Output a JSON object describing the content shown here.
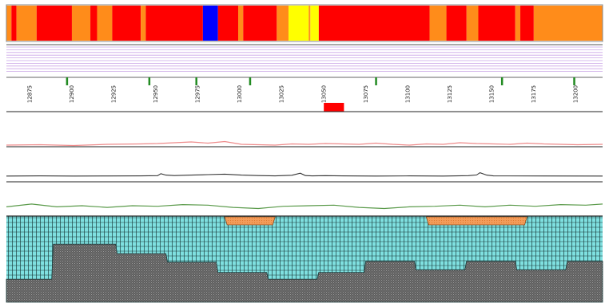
{
  "colors": {
    "red": "#ff0000",
    "orange": "#ff8c1a",
    "blue": "#0000ff",
    "yellow": "#ffff00",
    "marker_green": "#228b22",
    "highlight_red": "#ff0000",
    "track_pink": "#ee8a8a",
    "track_dark": "#333333",
    "track_green": "#5a9a4a",
    "region_orange": "#f39c5a",
    "cyan": "#7fe0e0",
    "grey_pattern": "#6b6b6b"
  },
  "ruler": {
    "domain": [
      12860,
      13215
    ],
    "labels": [
      "12875",
      "12900",
      "12925",
      "12950",
      "12975",
      "13000",
      "13025",
      "13050",
      "13075",
      "13100",
      "13125",
      "13150",
      "13175",
      "13200"
    ],
    "marker_positions": [
      12896,
      12945,
      12973,
      13005,
      13080,
      13155,
      13198
    ],
    "highlight": [
      13049,
      13061
    ]
  },
  "color_bar": [
    {
      "from": 12860,
      "to": 12863,
      "color": "orange"
    },
    {
      "from": 12863,
      "to": 12866,
      "color": "red"
    },
    {
      "from": 12866,
      "to": 12878,
      "color": "orange"
    },
    {
      "from": 12878,
      "to": 12899,
      "color": "red"
    },
    {
      "from": 12899,
      "to": 12910,
      "color": "orange"
    },
    {
      "from": 12910,
      "to": 12914,
      "color": "red"
    },
    {
      "from": 12914,
      "to": 12923,
      "color": "orange"
    },
    {
      "from": 12923,
      "to": 12940,
      "color": "red"
    },
    {
      "from": 12940,
      "to": 12943,
      "color": "orange"
    },
    {
      "from": 12943,
      "to": 12977,
      "color": "red"
    },
    {
      "from": 12977,
      "to": 12986,
      "color": "blue"
    },
    {
      "from": 12986,
      "to": 12998,
      "color": "red"
    },
    {
      "from": 12998,
      "to": 13001,
      "color": "orange"
    },
    {
      "from": 13001,
      "to": 13021,
      "color": "red"
    },
    {
      "from": 13021,
      "to": 13028,
      "color": "orange"
    },
    {
      "from": 13028,
      "to": 13040,
      "color": "yellow"
    },
    {
      "from": 13040,
      "to": 13041,
      "color": "orange"
    },
    {
      "from": 13041,
      "to": 13046,
      "color": "yellow"
    },
    {
      "from": 13046,
      "to": 13112,
      "color": "red"
    },
    {
      "from": 13112,
      "to": 13122,
      "color": "orange"
    },
    {
      "from": 13122,
      "to": 13134,
      "color": "red"
    },
    {
      "from": 13134,
      "to": 13141,
      "color": "orange"
    },
    {
      "from": 13141,
      "to": 13163,
      "color": "red"
    },
    {
      "from": 13163,
      "to": 13166,
      "color": "orange"
    },
    {
      "from": 13166,
      "to": 13174,
      "color": "red"
    },
    {
      "from": 13174,
      "to": 13215,
      "color": "orange"
    }
  ],
  "tracks": {
    "pink": {
      "x": [
        12860,
        12880,
        12900,
        12920,
        12940,
        12950,
        12960,
        12970,
        12980,
        12990,
        13000,
        13010,
        13020,
        13030,
        13040,
        13050,
        13060,
        13070,
        13080,
        13090,
        13100,
        13110,
        13120,
        13130,
        13140,
        13150,
        13160,
        13170,
        13180,
        13190,
        13200,
        13215
      ],
      "y": [
        0.2,
        0.25,
        0.15,
        0.3,
        0.35,
        0.4,
        0.5,
        0.6,
        0.45,
        0.65,
        0.3,
        0.25,
        0.2,
        0.35,
        0.3,
        0.4,
        0.35,
        0.3,
        0.45,
        0.3,
        0.2,
        0.35,
        0.3,
        0.5,
        0.4,
        0.35,
        0.3,
        0.45,
        0.35,
        0.3,
        0.25,
        0.3
      ]
    },
    "dark": {
      "x": [
        12860,
        12880,
        12900,
        12920,
        12940,
        12950,
        12952,
        12955,
        12960,
        12970,
        12980,
        12990,
        13000,
        13010,
        13020,
        13030,
        13035,
        13038,
        13042,
        13050,
        13060,
        13080,
        13100,
        13120,
        13135,
        13140,
        13142,
        13146,
        13150,
        13180,
        13215
      ],
      "y": [
        0.1,
        0.12,
        0.1,
        0.11,
        0.12,
        0.14,
        0.35,
        0.2,
        0.15,
        0.2,
        0.25,
        0.3,
        0.2,
        0.15,
        0.12,
        0.18,
        0.4,
        0.15,
        0.12,
        0.14,
        0.12,
        0.1,
        0.12,
        0.1,
        0.14,
        0.22,
        0.45,
        0.2,
        0.12,
        0.11,
        0.1
      ]
    },
    "green": {
      "x": [
        12860,
        12875,
        12890,
        12905,
        12920,
        12935,
        12950,
        12965,
        12980,
        12995,
        13010,
        13025,
        13040,
        13055,
        13070,
        13085,
        13100,
        13115,
        13130,
        13145,
        13160,
        13175,
        13190,
        13205,
        13215
      ],
      "y": [
        0.4,
        0.65,
        0.4,
        0.5,
        0.35,
        0.5,
        0.45,
        0.6,
        0.55,
        0.35,
        0.25,
        0.45,
        0.5,
        0.55,
        0.35,
        0.25,
        0.4,
        0.45,
        0.55,
        0.4,
        0.55,
        0.45,
        0.6,
        0.55,
        0.65
      ]
    }
  },
  "regions": [
    {
      "from": 12990,
      "to": 13020
    },
    {
      "from": 13110,
      "to": 13170
    }
  ],
  "depth_profile": [
    {
      "from": 12860,
      "to": 12887,
      "level": 0.27
    },
    {
      "from": 12887,
      "to": 12925,
      "level": 0.68
    },
    {
      "from": 12925,
      "to": 12955,
      "level": 0.57
    },
    {
      "from": 12955,
      "to": 12985,
      "level": 0.47
    },
    {
      "from": 12985,
      "to": 13015,
      "level": 0.35
    },
    {
      "from": 13015,
      "to": 13045,
      "level": 0.27
    },
    {
      "from": 13045,
      "to": 13073,
      "level": 0.35
    },
    {
      "from": 13073,
      "to": 13103,
      "level": 0.48
    },
    {
      "from": 13103,
      "to": 13133,
      "level": 0.38
    },
    {
      "from": 13133,
      "to": 13163,
      "level": 0.48
    },
    {
      "from": 13163,
      "to": 13193,
      "level": 0.38
    },
    {
      "from": 13193,
      "to": 13215,
      "level": 0.48
    }
  ]
}
